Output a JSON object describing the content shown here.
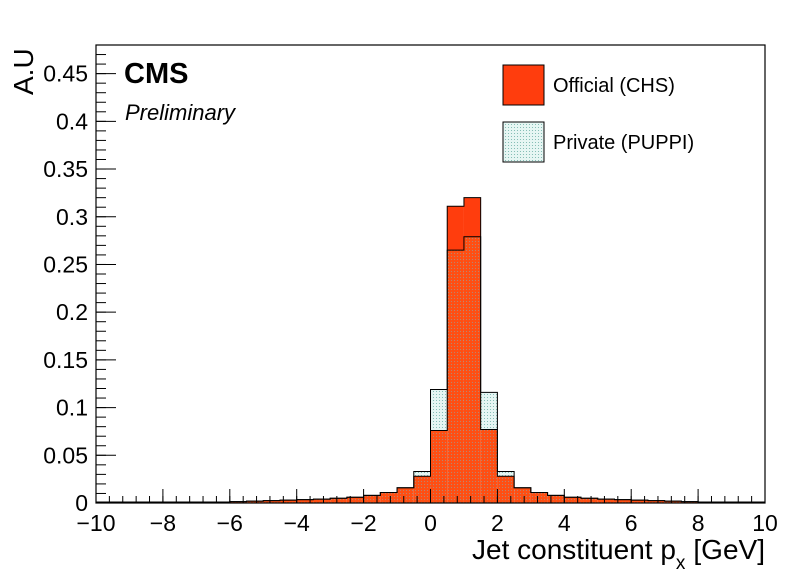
{
  "chart_data": {
    "type": "histogram",
    "ylabel": "A.U",
    "xlabel": "Jet constituent p",
    "xlabel_sub": "x",
    "xlabel_unit": "[GeV]",
    "xlim": [
      -10,
      10
    ],
    "ylim": [
      0,
      0.48
    ],
    "x_ticks": [
      -10,
      -8,
      -6,
      -4,
      -2,
      0,
      2,
      4,
      6,
      8,
      10
    ],
    "x_tick_labels": [
      "−10",
      "−8",
      "−6",
      "−4",
      "−2",
      "0",
      "2",
      "4",
      "6",
      "8",
      "10"
    ],
    "y_ticks": [
      0,
      0.05,
      0.1,
      0.15,
      0.2,
      0.25,
      0.3,
      0.35,
      0.4,
      0.45
    ],
    "y_tick_labels": [
      "0",
      "0.05",
      "0.1",
      "0.15",
      "0.2",
      "0.25",
      "0.3",
      "0.35",
      "0.4",
      "0.45"
    ],
    "bin_edges_start": -10,
    "bin_width": 0.5,
    "legend_position": "top-right",
    "series": [
      {
        "name": "Official (CHS)",
        "color": "#ff3d0d",
        "values": [
          0.001,
          0.001,
          0.001,
          0.001,
          0.001,
          0.001,
          0.001,
          0.001,
          0.0015,
          0.002,
          0.0025,
          0.003,
          0.0035,
          0.004,
          0.005,
          0.006,
          0.008,
          0.011,
          0.016,
          0.028,
          0.076,
          0.311,
          0.32,
          0.077,
          0.028,
          0.016,
          0.011,
          0.008,
          0.006,
          0.005,
          0.004,
          0.0035,
          0.003,
          0.0025,
          0.002,
          0.0015,
          0.001,
          0.001,
          0.001,
          0.001
        ]
      },
      {
        "name": "Private (PUPPI)",
        "color": "#d8f0ec",
        "values": [
          0.001,
          0.001,
          0.001,
          0.001,
          0.001,
          0.001,
          0.001,
          0.001,
          0.0015,
          0.002,
          0.0025,
          0.003,
          0.0035,
          0.004,
          0.005,
          0.006,
          0.008,
          0.011,
          0.016,
          0.033,
          0.119,
          0.265,
          0.279,
          0.116,
          0.033,
          0.016,
          0.011,
          0.008,
          0.006,
          0.005,
          0.004,
          0.0035,
          0.003,
          0.0025,
          0.002,
          0.0015,
          0.001,
          0.001,
          0.001,
          0.001
        ]
      }
    ]
  },
  "labels": {
    "cms": "CMS",
    "preliminary": "Preliminary"
  },
  "colors": {
    "official": "#ff3d0d",
    "private_fill": "#d8f0ec",
    "private_hatch": "#6fb0a8"
  }
}
